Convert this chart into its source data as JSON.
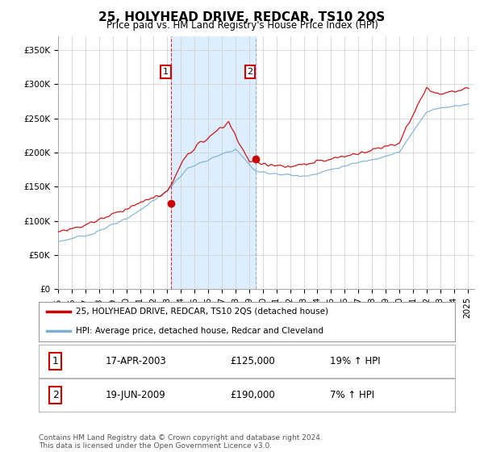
{
  "title": "25, HOLYHEAD DRIVE, REDCAR, TS10 2QS",
  "subtitle": "Price paid vs. HM Land Registry's House Price Index (HPI)",
  "ytick_values": [
    0,
    50000,
    100000,
    150000,
    200000,
    250000,
    300000,
    350000
  ],
  "ylim": [
    0,
    370000
  ],
  "sale1_date": "17-APR-2003",
  "sale1_price": 125000,
  "sale1_hpi": "19% ↑ HPI",
  "sale2_date": "19-JUN-2009",
  "sale2_price": 190000,
  "sale2_hpi": "7% ↑ HPI",
  "legend_line1": "25, HOLYHEAD DRIVE, REDCAR, TS10 2QS (detached house)",
  "legend_line2": "HPI: Average price, detached house, Redcar and Cleveland",
  "footer": "Contains HM Land Registry data © Crown copyright and database right 2024.\nThis data is licensed under the Open Government Licence v3.0.",
  "hpi_color": "#7bafd4",
  "price_color": "#cc0000",
  "shade_color": "#ddeeff",
  "sale1_x": 2003.29,
  "sale2_x": 2009.46,
  "xlim_left": 1995.0,
  "xlim_right": 2025.5
}
